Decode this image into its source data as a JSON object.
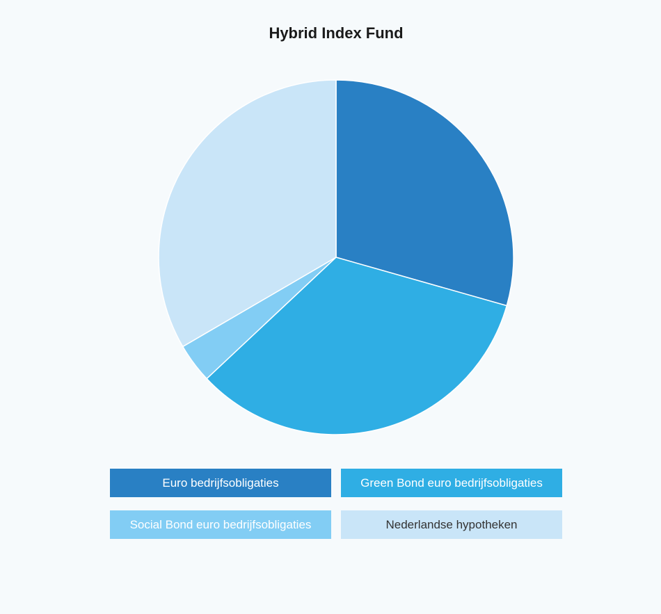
{
  "chart_data": {
    "type": "pie",
    "title": "Hybrid Index Fund",
    "categories": [
      "Euro bedrijfsobligaties",
      "Green Bond euro bedrijfsobligaties",
      "Social Bond euro bedrijfsobligaties",
      "Nederlandse hypotheken"
    ],
    "values": [
      29.4,
      33.6,
      3.6,
      33.4
    ],
    "colors": [
      "#2980c4",
      "#2faee4",
      "#82cdf4",
      "#c9e5f8"
    ],
    "legend": "bottom"
  }
}
